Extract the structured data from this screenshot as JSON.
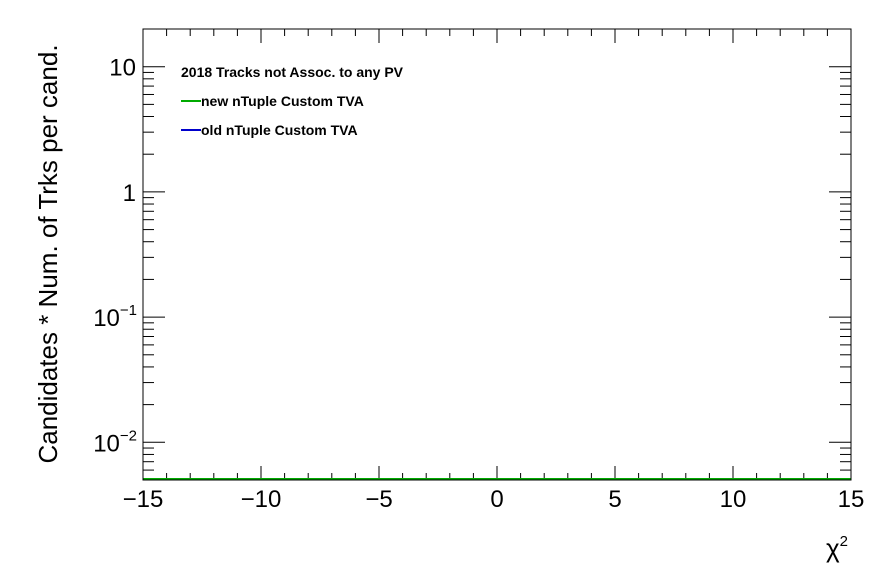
{
  "chart_data": {
    "type": "line",
    "title": "",
    "legend_header": "2018 Tracks not Assoc. to any PV",
    "legend_placement": "top-left",
    "xlabel": "",
    "xlabel_base": "χ",
    "xlabel_sup": "2",
    "ylabel": "Candidates * Num. of Trks per cand.",
    "xlim": [
      -15,
      15
    ],
    "ylim": [
      0.005,
      20
    ],
    "yscale": "log",
    "grid": false,
    "x_ticks": [
      -15,
      -10,
      -5,
      0,
      5,
      10,
      15
    ],
    "x_tick_labels": [
      "−15",
      "−10",
      "−5",
      "0",
      "5",
      "10",
      "15"
    ],
    "y_ticks": [
      {
        "value": 10,
        "base": "10",
        "exp": ""
      },
      {
        "value": 1,
        "base": "1",
        "exp": ""
      },
      {
        "value": 0.1,
        "base": "10",
        "exp": "−1"
      },
      {
        "value": 0.01,
        "base": "10",
        "exp": "−2"
      }
    ],
    "series": [
      {
        "name": "new nTuple Custom TVA",
        "color": "#00aa00",
        "x": [
          -15,
          15
        ],
        "y": [
          0.005,
          0.005
        ]
      },
      {
        "name": "old nTuple Custom TVA",
        "color": "#0000cc",
        "x": [
          -15,
          15
        ],
        "y": [
          0.005,
          0.005
        ]
      }
    ]
  }
}
